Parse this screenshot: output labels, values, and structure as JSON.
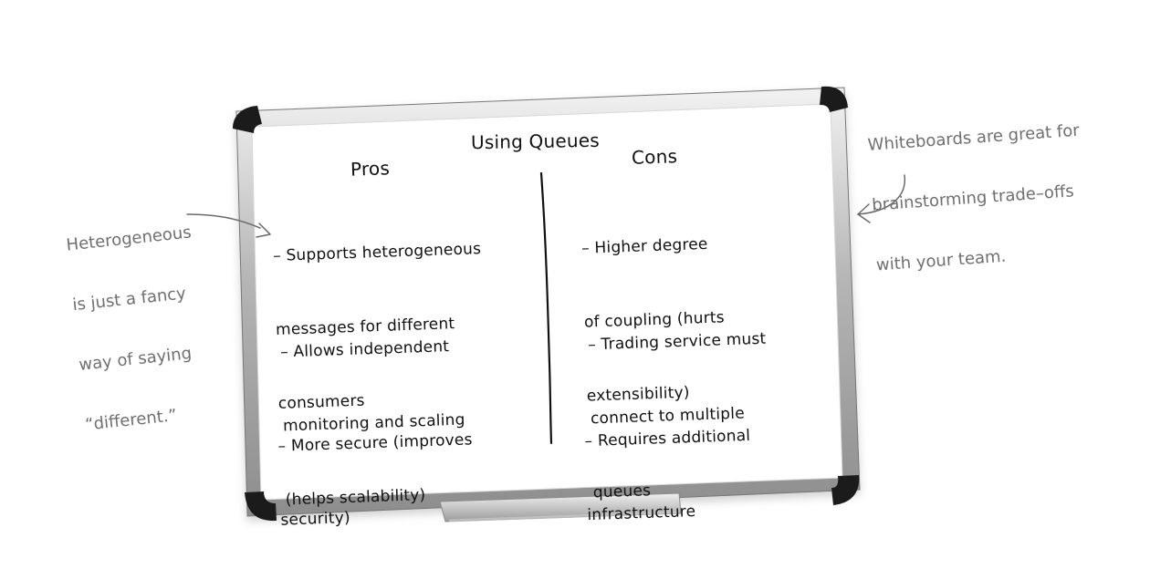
{
  "board": {
    "title": "Using Queues",
    "pros": {
      "heading": "Pros",
      "items": [
        {
          "lines": [
            "– Supports heterogeneous",
            "messages for different",
            "consumers"
          ]
        },
        {
          "lines": [
            "– Allows independent",
            "monitoring and scaling",
            "(helps scalability)"
          ]
        },
        {
          "lines": [
            "– More secure (improves",
            "security)"
          ]
        }
      ]
    },
    "cons": {
      "heading": "Cons",
      "items": [
        {
          "lines": [
            "– Higher degree",
            "of coupling (hurts",
            "extensibility)"
          ]
        },
        {
          "lines": [
            "– Trading service must",
            "connect to multiple",
            "queues"
          ]
        },
        {
          "lines": [
            "– Requires additional",
            "infrastructure"
          ]
        }
      ]
    }
  },
  "annotations": {
    "left": [
      "Heterogeneous",
      "is just a fancy",
      "way of saying",
      "“different.”"
    ],
    "right": [
      "Whiteboards are great for",
      "brainstorming trade–offs",
      "with your team."
    ]
  }
}
